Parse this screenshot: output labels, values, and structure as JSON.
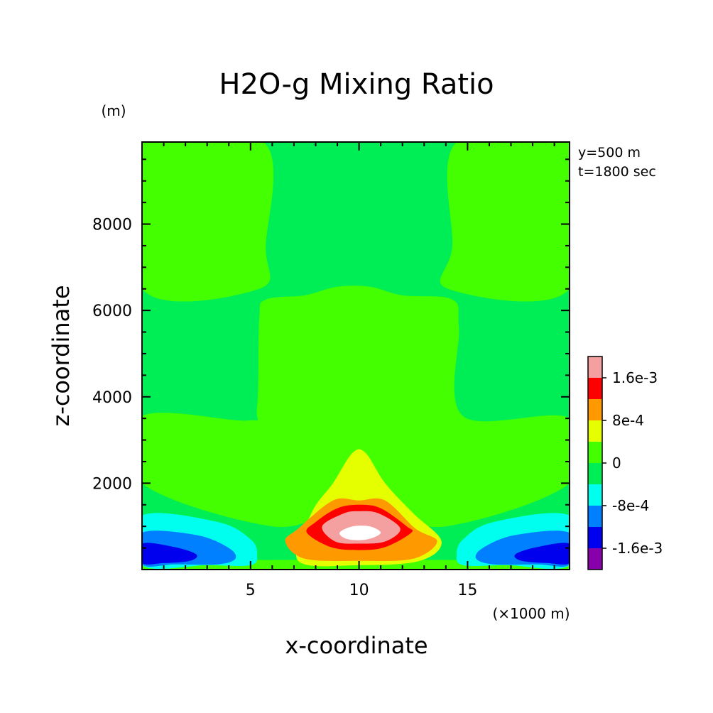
{
  "chart_data": {
    "type": "heatmap",
    "subtype": "filled-contour",
    "title": "H2O-g Mixing Ratio",
    "xlabel": "x-coordinate",
    "ylabel": "z-coordinate",
    "x_unit": "(×1000 m)",
    "y_unit": "(m)",
    "info_lines": [
      "y=500 m",
      "t=1800 sec"
    ],
    "xlim": [
      0,
      19.7
    ],
    "ylim": [
      0,
      9900
    ],
    "x_ticks": [
      5,
      10,
      15
    ],
    "y_ticks": [
      2000,
      4000,
      6000,
      8000
    ],
    "grid": false,
    "legend": "colorbar, right",
    "levels": [
      -0.0024,
      -0.0016,
      -0.0008,
      0,
      0.0008,
      0.0016,
      0.0024
    ],
    "colorbar_labels": [
      "1.6e-3",
      "8e-4",
      "0",
      "-8e-4",
      "-1.6e-3"
    ],
    "colorbar_bins": [
      {
        "color": "#f5a0a0",
        "range": [
          0.0016,
          0.002
        ]
      },
      {
        "color": "#ff0000",
        "range": [
          0.0012,
          0.0016
        ]
      },
      {
        "color": "#ff9900",
        "range": [
          0.0008,
          0.0012
        ]
      },
      {
        "color": "#e6ff00",
        "range": [
          0.0004,
          0.0008
        ]
      },
      {
        "color": "#44ff00",
        "range": [
          0.0,
          0.0004
        ]
      },
      {
        "color": "#00ee55",
        "range": [
          -0.0004,
          0.0
        ]
      },
      {
        "color": "#00ffee",
        "range": [
          -0.0008,
          -0.0004
        ]
      },
      {
        "color": "#0080ff",
        "range": [
          -0.0012,
          -0.0008
        ]
      },
      {
        "color": "#0000ee",
        "range": [
          -0.0016,
          -0.0012
        ]
      },
      {
        "color": "#8800aa",
        "range": [
          -0.002,
          -0.0016
        ]
      }
    ],
    "regions": [
      {
        "name": "upper-left-positive",
        "bin": "0..4e-4",
        "color": "#44ff00",
        "x": [
          0,
          5.6,
          5.7,
          5.4,
          0
        ],
        "z": [
          9900,
          9900,
          7500,
          6500,
          6500
        ]
      },
      {
        "name": "upper-right-positive",
        "bin": "0..4e-4",
        "color": "#44ff00",
        "x": [
          14.5,
          19.7,
          19.7,
          14.1,
          14.3
        ],
        "z": [
          9900,
          9900,
          6500,
          6500,
          7500
        ]
      },
      {
        "name": "lower-band-positive",
        "bin": "0..4e-4",
        "color": "#44ff00",
        "x": [
          0,
          4.8,
          5.3,
          5.4,
          5.7,
          7.5,
          9.0,
          10.5,
          12.0,
          14.3,
          14.6,
          14.8,
          19.7,
          19.7,
          14.0,
          11.0,
          9.0,
          6.0,
          0
        ],
        "z": [
          3550,
          3450,
          3750,
          5800,
          6250,
          6350,
          6550,
          6550,
          6350,
          6250,
          5600,
          3550,
          3500,
          2000,
          1000,
          1400,
          1400,
          1000,
          2000
        ]
      },
      {
        "name": "bottom-near-zero-positive",
        "bin": "0..4e-4",
        "color": "#44ff00",
        "x": [
          0,
          19.7,
          19.7,
          0
        ],
        "z": [
          0,
          0,
          200,
          200
        ]
      },
      {
        "name": "center-plume-8e-4",
        "bin": "4e-4..8e-4",
        "color": "#e6ff00",
        "x": [
          7.8,
          8.8,
          9.7,
          10.3,
          11.2,
          12.5,
          13.8,
          12.8,
          10.0,
          7.2
        ],
        "z": [
          1300,
          2000,
          2700,
          2700,
          2000,
          1300,
          650,
          200,
          100,
          200
        ]
      },
      {
        "name": "center-1.2e-3",
        "bin": "8e-4..1.2e-3",
        "color": "#ff9900",
        "x": [
          7.2,
          8.8,
          10.0,
          11.2,
          12.6,
          13.6,
          12.5,
          10.0,
          7.5,
          6.6
        ],
        "z": [
          950,
          1600,
          1600,
          1600,
          950,
          650,
          250,
          200,
          250,
          650
        ]
      },
      {
        "name": "center-1.6e-3",
        "bin": "1.2e-3..1.6e-3",
        "color": "#ff0000",
        "x": [
          8.0,
          9.0,
          10.0,
          11.0,
          12.2,
          12.4,
          11.2,
          10.0,
          8.7,
          7.6
        ],
        "z": [
          1100,
          1420,
          1500,
          1420,
          1000,
          850,
          520,
          450,
          520,
          850
        ]
      },
      {
        "name": "center-2.0e-3",
        "bin": "1.6e-3..2.0e-3",
        "color": "#f5a0a0",
        "x": [
          8.3,
          9.3,
          10.0,
          10.9,
          11.9,
          11.2,
          10.0,
          8.9
        ],
        "z": [
          1000,
          1300,
          1350,
          1300,
          950,
          650,
          600,
          650
        ]
      },
      {
        "name": "center-peak",
        "bin": ">2.0e-3",
        "color": "#ffffff",
        "x": [
          9.1,
          9.7,
          10.5,
          11.0,
          10.4,
          9.5
        ],
        "z": [
          850,
          1000,
          1000,
          850,
          700,
          700
        ]
      },
      {
        "name": "left-bottom-neg-4e-4",
        "bin": "-8e-4..-4e-4",
        "color": "#00ffee",
        "x": [
          0,
          3.5,
          5.0,
          5.3,
          5.0,
          3.0,
          0
        ],
        "z": [
          1250,
          1100,
          700,
          350,
          100,
          100,
          100
        ]
      },
      {
        "name": "left-bottom-neg-8e-4",
        "bin": "-1.2e-3..-8e-4",
        "color": "#0080ff",
        "x": [
          0,
          2.5,
          4.0,
          4.3,
          3.5,
          1.5,
          0
        ],
        "z": [
          850,
          800,
          500,
          250,
          120,
          120,
          120
        ]
      },
      {
        "name": "left-bottom-neg-1.2e-3",
        "bin": "-1.6e-3..-1.2e-3",
        "color": "#0000ee",
        "x": [
          0,
          1.5,
          2.5,
          2.2,
          1.0,
          0
        ],
        "z": [
          600,
          520,
          350,
          200,
          150,
          150
        ]
      },
      {
        "name": "right-bottom-neg-4e-4",
        "bin": "-8e-4..-4e-4",
        "color": "#00ffee",
        "x": [
          19.7,
          16.2,
          14.8,
          14.5,
          14.8,
          16.8,
          19.7
        ],
        "z": [
          1250,
          1100,
          700,
          350,
          100,
          100,
          100
        ]
      },
      {
        "name": "right-bottom-neg-8e-4",
        "bin": "-1.2e-3..-8e-4",
        "color": "#0080ff",
        "x": [
          19.7,
          17.2,
          15.7,
          15.4,
          16.2,
          18.2,
          19.7
        ],
        "z": [
          850,
          800,
          500,
          250,
          120,
          120,
          120
        ]
      },
      {
        "name": "right-bottom-neg-1.2e-3",
        "bin": "-1.6e-3..-1.2e-3",
        "color": "#0000ee",
        "x": [
          19.7,
          18.2,
          17.2,
          17.5,
          18.7,
          19.7
        ],
        "z": [
          600,
          520,
          350,
          200,
          150,
          150
        ]
      }
    ]
  }
}
